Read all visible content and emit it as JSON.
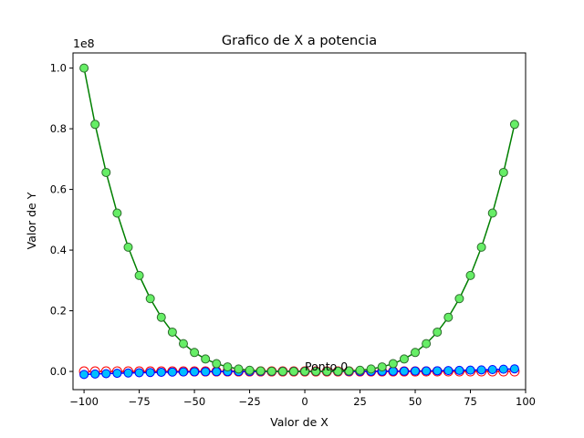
{
  "chart_data": {
    "type": "line",
    "title": "Grafico de X a potencia",
    "xlabel": "Valor de X",
    "ylabel": "Valor de Y",
    "y_offset_label": "1e8",
    "xlim": [
      -105,
      100
    ],
    "ylim": [
      -0.06,
      1.05
    ],
    "y_unit_multiplier": 100000000,
    "x_ticks": [
      -100,
      -75,
      -50,
      -25,
      0,
      25,
      50,
      75,
      100
    ],
    "x_tick_labels": [
      "−100",
      "−75",
      "−50",
      "−25",
      "0",
      "25",
      "50",
      "75",
      "100"
    ],
    "y_ticks": [
      0.0,
      0.2,
      0.4,
      0.6,
      0.8,
      1.0
    ],
    "y_tick_labels": [
      "0.0",
      "0.2",
      "0.4",
      "0.6",
      "0.8",
      "1.0"
    ],
    "x": [
      -100,
      -95,
      -90,
      -85,
      -80,
      -75,
      -70,
      -65,
      -60,
      -55,
      -50,
      -45,
      -40,
      -35,
      -30,
      -25,
      -20,
      -15,
      -10,
      -5,
      0,
      5,
      10,
      15,
      20,
      25,
      30,
      35,
      40,
      45,
      50,
      55,
      60,
      65,
      70,
      75,
      80,
      85,
      90,
      95
    ],
    "series": [
      {
        "exponent": 2,
        "line_color": "#ff0000",
        "marker_fill": "#ffffff",
        "marker_edge": "#ff0000",
        "marker_size": 5
      },
      {
        "exponent": 3,
        "line_color": "#0000ff",
        "marker_fill": "#00bfff",
        "marker_edge": "#0000ff",
        "marker_size": 4.5
      },
      {
        "exponent": 4,
        "line_color": "#008000",
        "marker_fill": "#66ee66",
        "marker_edge": "#2e6b2e",
        "marker_size": 4.5
      }
    ],
    "annotations": [
      {
        "text": "Ponto 0",
        "x": 0,
        "y": 0
      }
    ],
    "grid": false,
    "legend": "none"
  }
}
